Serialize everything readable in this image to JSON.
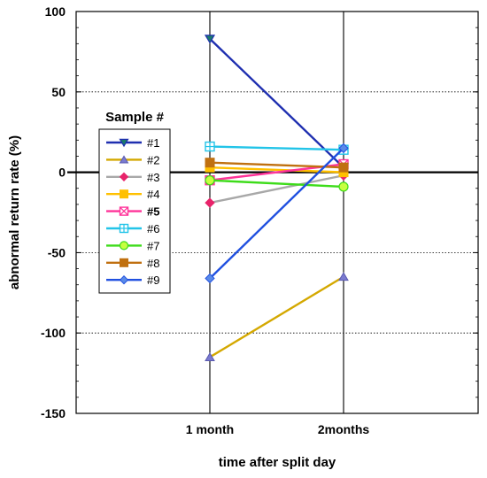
{
  "chart_data": {
    "type": "line",
    "xlabel": "time after split day",
    "ylabel": "abnormal return rate (%)",
    "x_categories": [
      "1 month",
      "2months"
    ],
    "ylim": [
      -150,
      100
    ],
    "y_ticks": [
      100,
      50,
      0,
      -50,
      -100,
      -150
    ],
    "y_tick_labels": [
      "100",
      "50",
      "0",
      "-50",
      "-100",
      "-150"
    ],
    "grid": "horizontal dotted at 50 and -50 and -100; vertical solid at categories",
    "zero_line": true,
    "legend": {
      "title": "Sample #",
      "position": "left"
    },
    "series": [
      {
        "name": "#1",
        "values": [
          83,
          3
        ],
        "color": "#1f2fb0",
        "marker": "triangle-down"
      },
      {
        "name": "#2",
        "values": [
          -115,
          -65
        ],
        "color": "#d4a800",
        "marker": "triangle-up"
      },
      {
        "name": "#3",
        "values": [
          -19,
          -2
        ],
        "color": "#a8a8a8",
        "marker": "diamond"
      },
      {
        "name": "#4",
        "values": [
          3,
          0
        ],
        "color": "#ffc000",
        "marker": "square"
      },
      {
        "name": "#5",
        "values": [
          -5,
          5
        ],
        "color": "#ff3399",
        "marker": "square-x"
      },
      {
        "name": "#6",
        "values": [
          16,
          14
        ],
        "color": "#22c4e8",
        "marker": "square-plus"
      },
      {
        "name": "#7",
        "values": [
          -5,
          -9
        ],
        "color": "#3ddc1a",
        "marker": "circle"
      },
      {
        "name": "#8",
        "values": [
          6,
          3
        ],
        "color": "#c07010",
        "marker": "square"
      },
      {
        "name": "#9",
        "values": [
          -66,
          15
        ],
        "color": "#2050e0",
        "marker": "diamond"
      }
    ]
  }
}
